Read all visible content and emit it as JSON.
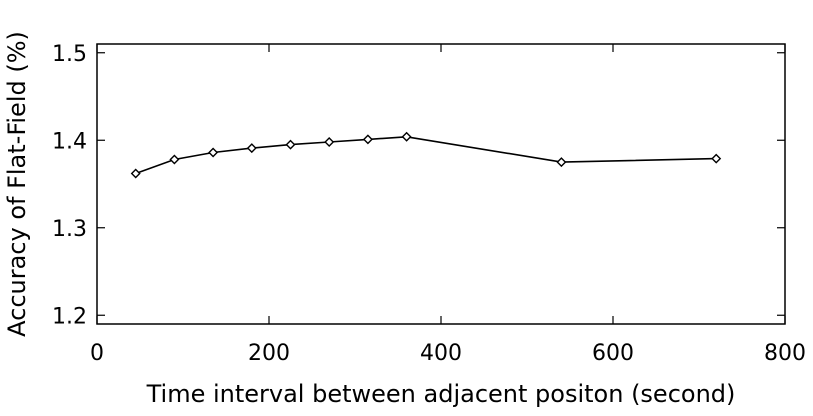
{
  "chart_data": {
    "type": "line",
    "title": "",
    "xlabel": "Time interval between adjacent positon (second)",
    "ylabel": "Accuracy of Flat-Field (%)",
    "xlim": [
      0,
      800
    ],
    "ylim": [
      1.19,
      1.51
    ],
    "x_ticks": [
      0,
      200,
      400,
      600,
      800
    ],
    "x_tick_labels": [
      "0",
      "200",
      "400",
      "600",
      "800"
    ],
    "y_ticks": [
      1.2,
      1.3,
      1.4,
      1.5
    ],
    "y_tick_labels": [
      "1.2",
      "1.3",
      "1.4",
      "1.5"
    ],
    "grid": false,
    "marker": "diamond",
    "series": [
      {
        "x": [
          45,
          90,
          135,
          180,
          225,
          270,
          315,
          360,
          540,
          720
        ],
        "y": [
          1.362,
          1.378,
          1.386,
          1.391,
          1.395,
          1.398,
          1.401,
          1.404,
          1.375,
          1.379
        ]
      }
    ]
  }
}
